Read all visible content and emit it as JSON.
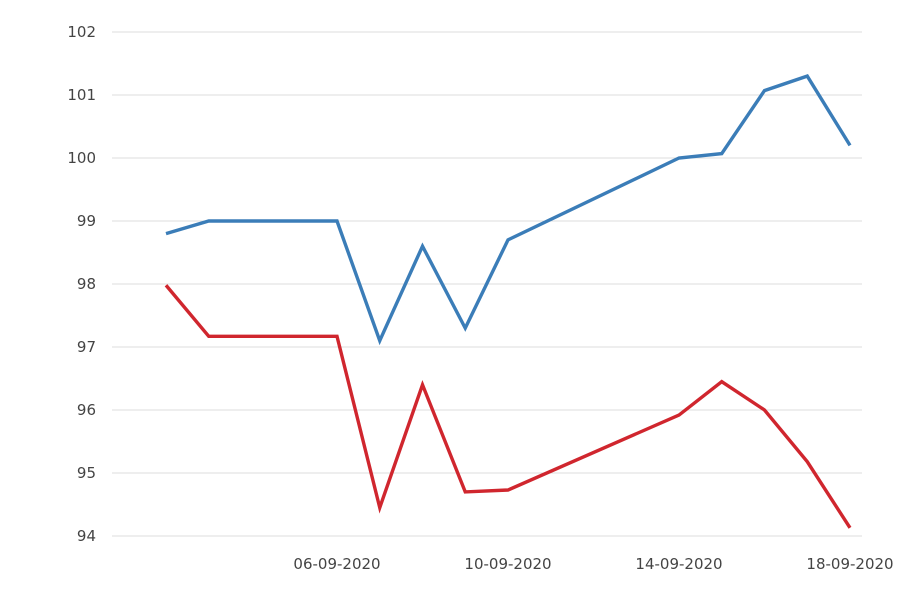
{
  "chart_data": {
    "type": "line",
    "title": "",
    "xlabel": "",
    "ylabel": "",
    "ylim": [
      94,
      102
    ],
    "yticks": [
      "94",
      "95",
      "96",
      "97",
      "98",
      "99",
      "100",
      "101",
      "102"
    ],
    "xticks": [
      "06-09-2020",
      "10-09-2020",
      "14-09-2020",
      "18-09-2020"
    ],
    "grid": true,
    "legend": "none",
    "x": [
      "02-09-2020",
      "03-09-2020",
      "04-09-2020",
      "05-09-2020",
      "06-09-2020",
      "07-09-2020",
      "08-09-2020",
      "09-09-2020",
      "10-09-2020",
      "11-09-2020",
      "12-09-2020",
      "13-09-2020",
      "14-09-2020",
      "15-09-2020",
      "16-09-2020",
      "17-09-2020",
      "18-09-2020"
    ],
    "series": [
      {
        "color": "#3b7db8",
        "values": [
          98.8,
          99.0,
          99.0,
          99.0,
          99.0,
          97.1,
          98.6,
          97.3,
          98.7,
          null,
          null,
          null,
          100.0,
          100.07,
          101.07,
          101.3,
          100.2
        ]
      },
      {
        "color": "#d0262e",
        "values": [
          97.98,
          97.17,
          97.17,
          97.17,
          97.17,
          94.45,
          96.4,
          94.7,
          94.73,
          null,
          null,
          null,
          95.92,
          96.45,
          96.0,
          95.18,
          94.13
        ]
      }
    ]
  }
}
